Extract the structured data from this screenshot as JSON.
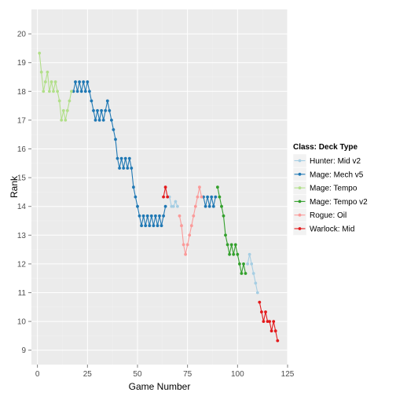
{
  "chart_data": {
    "type": "line",
    "xlabel": "Game Number",
    "ylabel": "Rank",
    "xlim": [
      -3,
      125
    ],
    "ylim": [
      8.5,
      20.85
    ],
    "x_ticks": [
      0,
      25,
      50,
      75,
      100,
      125
    ],
    "y_ticks": [
      9,
      10,
      11,
      12,
      13,
      14,
      15,
      16,
      17,
      18,
      19,
      20
    ],
    "grid": true,
    "legend_title": "Class: Deck Type",
    "legend_position": "right",
    "series": [
      {
        "name": "Hunter: Mid v2",
        "color": "#a6cee3",
        "points": [
          [
            66,
            14.33
          ],
          [
            67,
            14.0
          ],
          [
            68,
            14.0
          ],
          [
            69,
            14.17
          ],
          [
            70,
            14.0
          ],
          [
            105,
            12.0
          ],
          [
            106,
            12.33
          ],
          [
            107,
            12.0
          ],
          [
            108,
            11.67
          ],
          [
            109,
            11.33
          ],
          [
            110,
            11.0
          ]
        ]
      },
      {
        "name": "Mage: Mech v5",
        "color": "#1f78b4",
        "points": [
          [
            18,
            18.0
          ],
          [
            19,
            18.33
          ],
          [
            20,
            18.0
          ],
          [
            21,
            18.33
          ],
          [
            22,
            18.0
          ],
          [
            23,
            18.33
          ],
          [
            24,
            18.0
          ],
          [
            25,
            18.33
          ],
          [
            26,
            18.0
          ],
          [
            27,
            17.67
          ],
          [
            28,
            17.33
          ],
          [
            29,
            17.0
          ],
          [
            30,
            17.33
          ],
          [
            31,
            17.0
          ],
          [
            32,
            17.33
          ],
          [
            33,
            17.0
          ],
          [
            34,
            17.33
          ],
          [
            35,
            17.67
          ],
          [
            36,
            17.33
          ],
          [
            37,
            17.0
          ],
          [
            38,
            16.67
          ],
          [
            39,
            16.33
          ],
          [
            40,
            15.67
          ],
          [
            41,
            15.33
          ],
          [
            42,
            15.67
          ],
          [
            43,
            15.33
          ],
          [
            44,
            15.67
          ],
          [
            45,
            15.33
          ],
          [
            46,
            15.67
          ],
          [
            47,
            15.33
          ],
          [
            48,
            14.67
          ],
          [
            49,
            14.33
          ],
          [
            50,
            14.0
          ],
          [
            51,
            13.67
          ],
          [
            52,
            13.33
          ],
          [
            53,
            13.67
          ],
          [
            54,
            13.33
          ],
          [
            55,
            13.67
          ],
          [
            56,
            13.33
          ],
          [
            57,
            13.67
          ],
          [
            58,
            13.33
          ],
          [
            59,
            13.67
          ],
          [
            60,
            13.33
          ],
          [
            61,
            13.67
          ],
          [
            62,
            13.33
          ],
          [
            63,
            13.67
          ],
          [
            64,
            14.0
          ],
          [
            83,
            14.33
          ],
          [
            84,
            14.0
          ],
          [
            85,
            14.33
          ],
          [
            86,
            14.0
          ],
          [
            87,
            14.33
          ],
          [
            88,
            14.0
          ],
          [
            89,
            14.33
          ]
        ]
      },
      {
        "name": "Mage: Tempo",
        "color": "#b2df8a",
        "points": [
          [
            1,
            19.33
          ],
          [
            2,
            18.67
          ],
          [
            3,
            18.0
          ],
          [
            4,
            18.33
          ],
          [
            5,
            18.67
          ],
          [
            6,
            18.0
          ],
          [
            7,
            18.33
          ],
          [
            8,
            18.0
          ],
          [
            9,
            18.33
          ],
          [
            10,
            18.0
          ],
          [
            11,
            17.67
          ],
          [
            12,
            17.0
          ],
          [
            13,
            17.33
          ],
          [
            14,
            17.0
          ],
          [
            15,
            17.33
          ],
          [
            16,
            17.67
          ],
          [
            17,
            18.0
          ]
        ]
      },
      {
        "name": "Mage: Tempo v2",
        "color": "#33a02c",
        "points": [
          [
            90,
            14.67
          ],
          [
            91,
            14.33
          ],
          [
            92,
            14.0
          ],
          [
            93,
            13.67
          ],
          [
            94,
            13.0
          ],
          [
            95,
            12.67
          ],
          [
            96,
            12.33
          ],
          [
            97,
            12.67
          ],
          [
            98,
            12.33
          ],
          [
            99,
            12.67
          ],
          [
            100,
            12.33
          ],
          [
            101,
            12.0
          ],
          [
            102,
            11.67
          ],
          [
            103,
            12.0
          ],
          [
            104,
            11.67
          ]
        ]
      },
      {
        "name": "Rogue: Oil",
        "color": "#fb9a99",
        "points": [
          [
            71,
            13.67
          ],
          [
            72,
            13.33
          ],
          [
            73,
            12.67
          ],
          [
            74,
            12.33
          ],
          [
            75,
            12.67
          ],
          [
            76,
            13.0
          ],
          [
            77,
            13.33
          ],
          [
            78,
            13.67
          ],
          [
            79,
            14.0
          ],
          [
            80,
            14.33
          ],
          [
            81,
            14.67
          ],
          [
            82,
            14.33
          ]
        ]
      },
      {
        "name": "Warlock: Mid",
        "color": "#e31a1c",
        "points": [
          [
            63,
            14.33
          ],
          [
            64,
            14.67
          ],
          [
            65,
            14.33
          ],
          [
            111,
            10.67
          ],
          [
            112,
            10.33
          ],
          [
            113,
            10.0
          ],
          [
            114,
            10.33
          ],
          [
            115,
            10.0
          ],
          [
            116,
            10.0
          ],
          [
            117,
            9.67
          ],
          [
            118,
            10.0
          ],
          [
            119,
            9.67
          ],
          [
            120,
            9.33
          ]
        ]
      }
    ]
  }
}
